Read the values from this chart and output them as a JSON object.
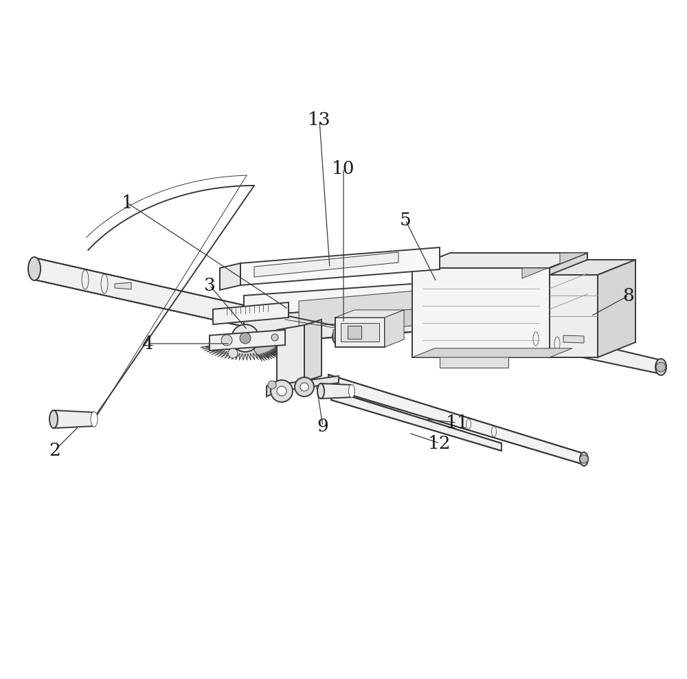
{
  "bg_color": "#ffffff",
  "line_color": "#3a3a3a",
  "label_color": "#1a1a1a",
  "figsize": [
    10.0,
    9.88
  ],
  "dpi": 100,
  "lw_main": 1.4,
  "lw_thin": 0.7,
  "lw_thick": 2.0,
  "label_fontsize": 19,
  "labels_info": [
    [
      "1",
      [
        0.185,
        0.88
      ],
      [
        0.42,
        0.555
      ]
    ],
    [
      "2",
      [
        0.085,
        0.65
      ],
      [
        0.195,
        0.705
      ]
    ],
    [
      "3",
      [
        0.305,
        0.77
      ],
      [
        0.385,
        0.59
      ]
    ],
    [
      "4",
      [
        0.215,
        0.715
      ],
      [
        0.35,
        0.63
      ]
    ],
    [
      "5",
      [
        0.59,
        0.785
      ],
      [
        0.645,
        0.655
      ]
    ],
    [
      "8",
      [
        0.915,
        0.64
      ],
      [
        0.81,
        0.575
      ]
    ],
    [
      "9",
      [
        0.47,
        0.625
      ],
      [
        0.475,
        0.555
      ]
    ],
    [
      "10",
      [
        0.5,
        0.745
      ],
      [
        0.5,
        0.6
      ]
    ],
    [
      "11",
      [
        0.665,
        0.67
      ],
      [
        0.61,
        0.64
      ]
    ],
    [
      "12",
      [
        0.64,
        0.695
      ],
      [
        0.6,
        0.673
      ]
    ],
    [
      "13",
      [
        0.465,
        0.84
      ],
      [
        0.48,
        0.63
      ]
    ]
  ]
}
